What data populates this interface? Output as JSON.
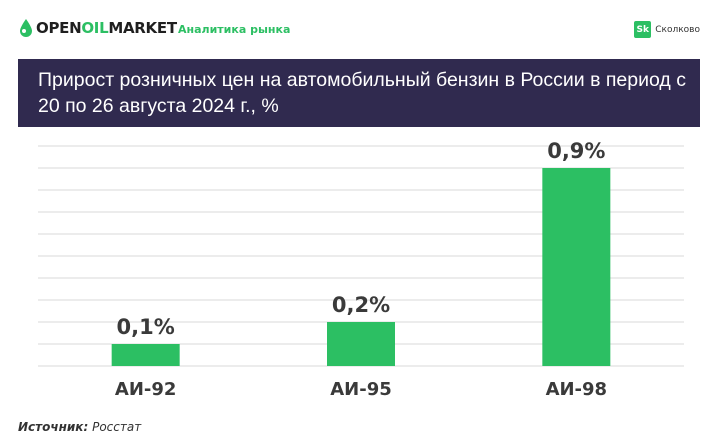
{
  "header": {
    "brand_part1": "OPEN",
    "brand_part2": "OIL",
    "brand_part3": "MARKET",
    "subtitle": "Аналитика рынка",
    "partner_badge": "Sk",
    "partner_name": "Сколково"
  },
  "colors": {
    "accent": "#2cbf63",
    "title_bg": "#302a4f",
    "bar": "#2cbf63",
    "grid": "#d9d9d9"
  },
  "chart_data": {
    "type": "bar",
    "title": "Прирост розничных цен на автомобильный бензин в России в период с 20 по 26 августа 2024 г., %",
    "categories": [
      "АИ-92",
      "АИ-95",
      "АИ-98"
    ],
    "values": [
      0.1,
      0.2,
      0.9
    ],
    "data_labels": [
      "0,1%",
      "0,2%",
      "0,9%"
    ],
    "xlabel": "",
    "ylabel": "",
    "ylim": [
      0,
      1.0
    ],
    "grid": true
  },
  "footer": {
    "source_label": "Источник:",
    "source_value": "Росстат"
  }
}
